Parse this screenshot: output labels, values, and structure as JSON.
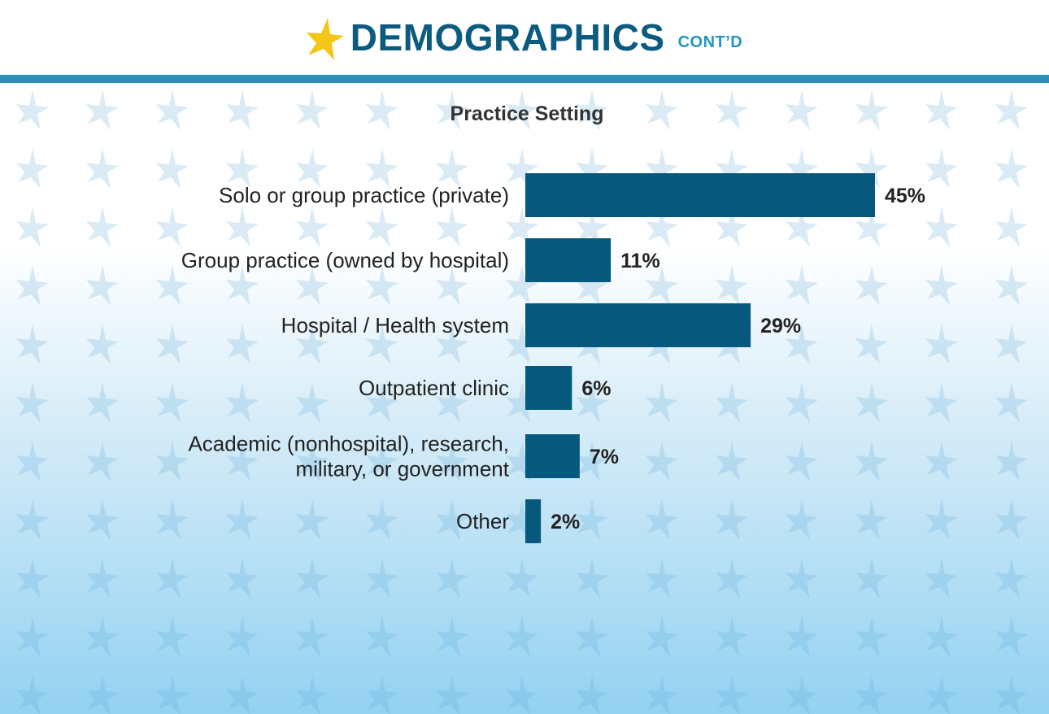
{
  "header": {
    "title": "DEMOGRAPHICS",
    "subtitle": "CONT’D",
    "icon": "star-icon",
    "colors": {
      "title": "#0b5a7f",
      "subtitle": "#2596be",
      "star": "#f5c518",
      "rule": "#2b8fb7"
    }
  },
  "chart_data": {
    "type": "bar",
    "orientation": "horizontal",
    "title": "Practice Setting",
    "categories": [
      [
        "Solo or group practice (private)"
      ],
      [
        "Group practice (owned by hospital)"
      ],
      [
        "Hospital / Health system"
      ],
      [
        "Outpatient clinic"
      ],
      [
        "Academic (nonhospital), research,",
        "military, or government"
      ],
      [
        "Other"
      ]
    ],
    "values": [
      45,
      11,
      29,
      6,
      7,
      2
    ],
    "value_labels": [
      "45%",
      "11%",
      "29%",
      "6%",
      "7%",
      "2%"
    ],
    "unit": "%",
    "bar_color": "#06587c",
    "grid": false,
    "legend": "none"
  }
}
